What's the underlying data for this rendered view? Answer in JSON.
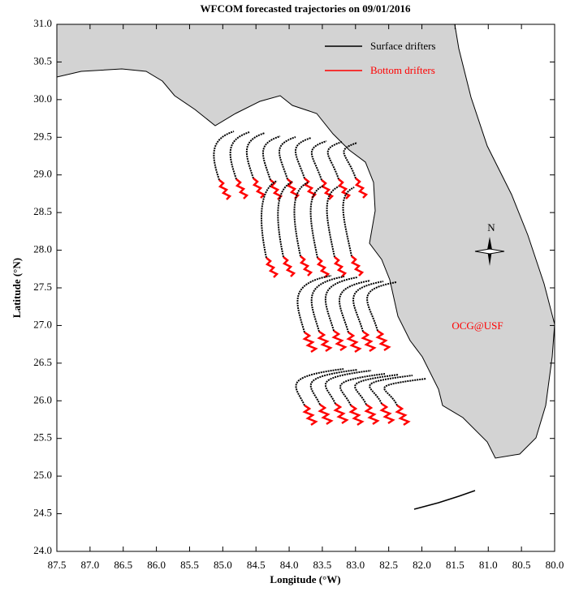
{
  "chart_data": {
    "type": "map",
    "title": "WFCOM forecasted trajectories on 09/01/2016",
    "x_label": "Longitude (°W)",
    "y_label": "Latitude (°N)",
    "xlim": [
      87.5,
      80.0
    ],
    "ylim": [
      24.0,
      31.0
    ],
    "xticks": [
      87.5,
      {
        "value": 87,
        "label": "87.0"
      },
      86.5,
      {
        "value": 86,
        "label": "86.0"
      },
      85.5,
      {
        "value": 85,
        "label": "85.0"
      },
      84.5,
      {
        "value": 84,
        "label": "84.0"
      },
      83.5,
      {
        "value": 83,
        "label": "83.0"
      },
      82.5,
      {
        "value": 82,
        "label": "82.0"
      },
      81.5,
      {
        "value": 81,
        "label": "81.0"
      },
      80.5,
      {
        "value": 80,
        "label": "80.0"
      }
    ],
    "yticks": [
      {
        "value": 24,
        "label": "24.0"
      },
      24.5,
      {
        "value": 25,
        "label": "25.0"
      },
      25.5,
      {
        "value": 26,
        "label": "26.0"
      },
      26.5,
      {
        "value": 27,
        "label": "27.0"
      },
      27.5,
      {
        "value": 28,
        "label": "28.0"
      },
      28.5,
      {
        "value": 29,
        "label": "29.0"
      },
      29.5,
      {
        "value": 30,
        "label": "30.0"
      },
      30.5,
      {
        "value": 31,
        "label": "31.0"
      }
    ],
    "series": [
      {
        "name": "Surface drifters",
        "color": "#000000"
      },
      {
        "name": "Bottom drifters",
        "color": "#ff0000"
      }
    ],
    "annotation": "OCG@USF",
    "compass": "N"
  }
}
